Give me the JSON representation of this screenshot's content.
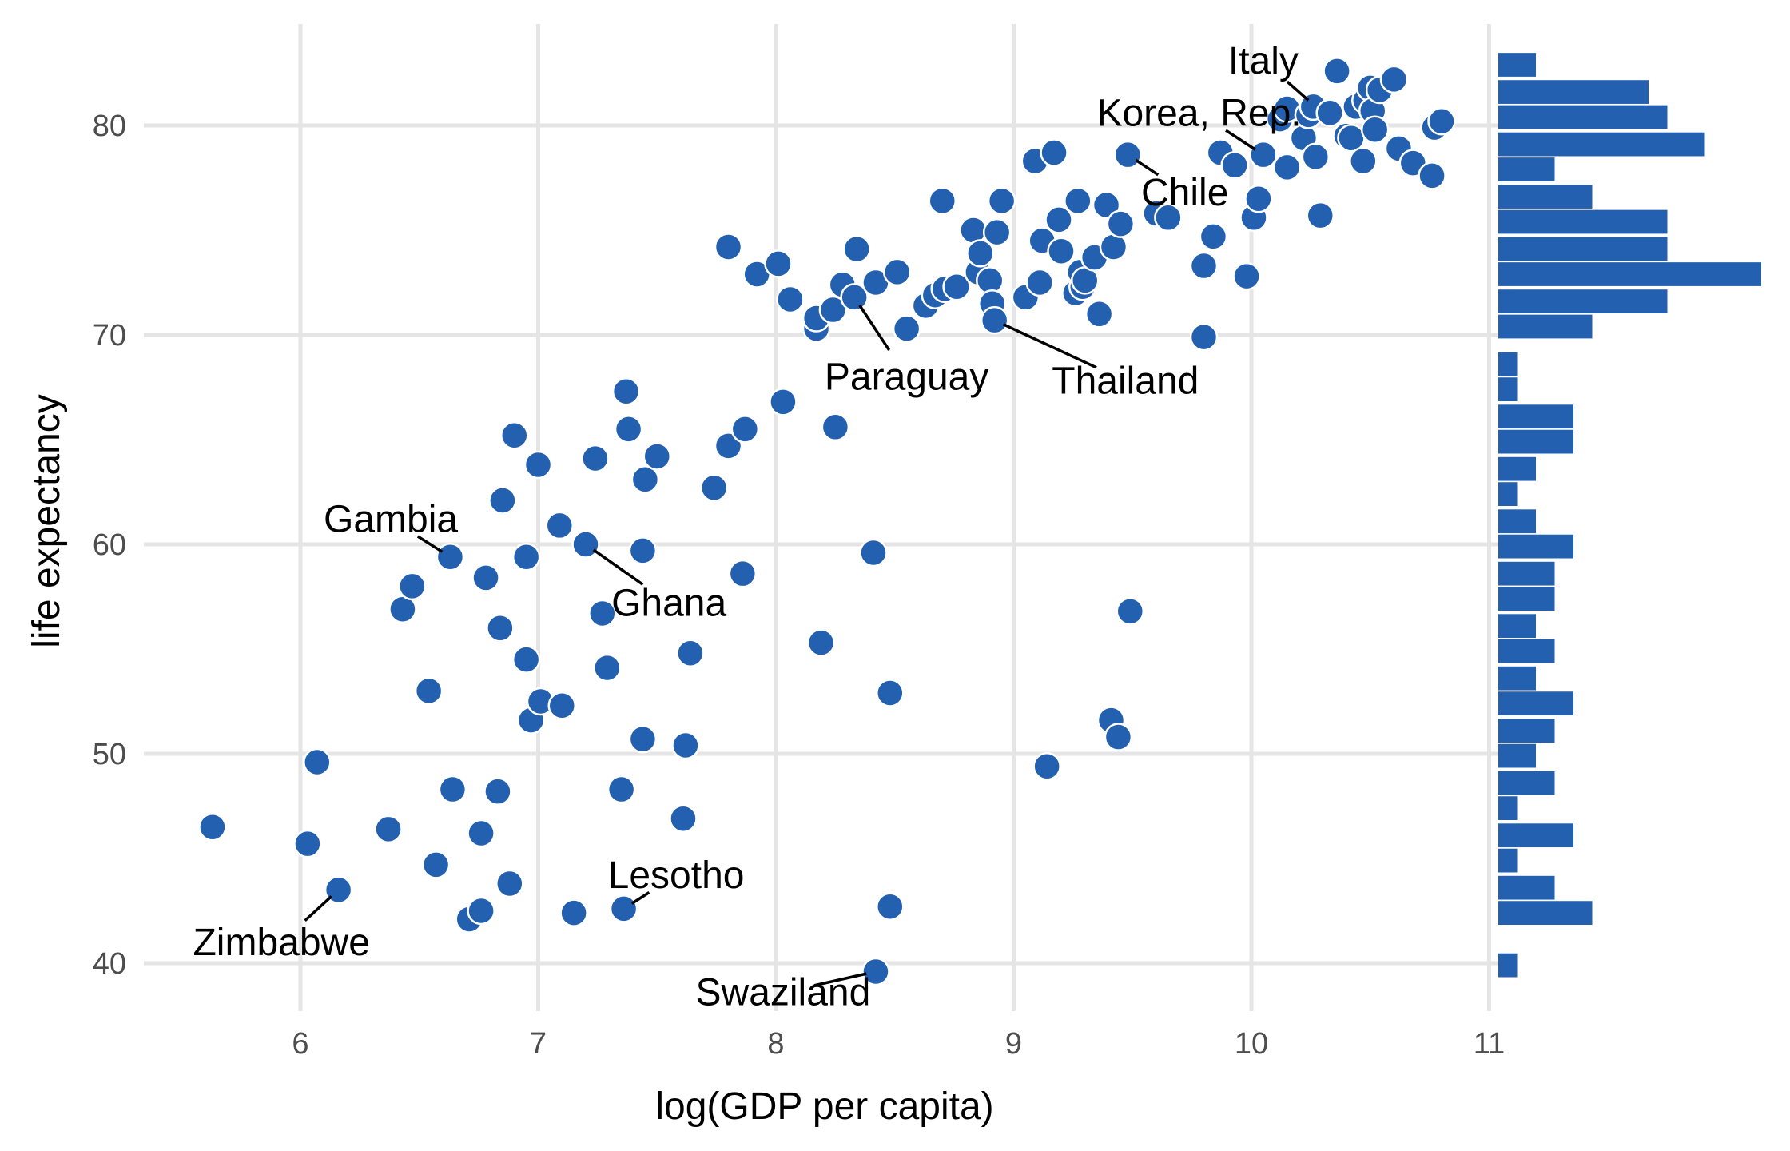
{
  "chart_data": {
    "type": "scatter",
    "title": "",
    "xlabel": "log(GDP per capita)",
    "ylabel": "life expectancy",
    "xlim": [
      5.4,
      11.05
    ],
    "ylim": [
      37.5,
      84.5
    ],
    "x_ticks": [
      6,
      7,
      8,
      9,
      10,
      11
    ],
    "y_ticks": [
      40,
      50,
      60,
      70,
      80
    ],
    "grid": true,
    "point_color": "#2460B0",
    "point_stroke": "#ffffff",
    "marginal_histogram": {
      "side": "right",
      "orientation": "horizontal",
      "bin_width": 1.25,
      "bins": [
        {
          "y": 39.9,
          "count": 1
        },
        {
          "y": 42.4,
          "count": 5
        },
        {
          "y": 43.6,
          "count": 3
        },
        {
          "y": 44.9,
          "count": 1
        },
        {
          "y": 46.1,
          "count": 4
        },
        {
          "y": 47.4,
          "count": 1
        },
        {
          "y": 48.6,
          "count": 3
        },
        {
          "y": 49.9,
          "count": 2
        },
        {
          "y": 51.1,
          "count": 3
        },
        {
          "y": 52.4,
          "count": 4
        },
        {
          "y": 53.6,
          "count": 2
        },
        {
          "y": 54.9,
          "count": 3
        },
        {
          "y": 56.1,
          "count": 2
        },
        {
          "y": 57.4,
          "count": 3
        },
        {
          "y": 58.6,
          "count": 3
        },
        {
          "y": 59.9,
          "count": 4
        },
        {
          "y": 61.1,
          "count": 2
        },
        {
          "y": 62.4,
          "count": 1
        },
        {
          "y": 63.6,
          "count": 2
        },
        {
          "y": 64.9,
          "count": 4
        },
        {
          "y": 66.1,
          "count": 4
        },
        {
          "y": 67.4,
          "count": 1
        },
        {
          "y": 68.6,
          "count": 1
        },
        {
          "y": 70.4,
          "count": 5
        },
        {
          "y": 71.6,
          "count": 9
        },
        {
          "y": 72.9,
          "count": 14
        },
        {
          "y": 74.1,
          "count": 9
        },
        {
          "y": 75.4,
          "count": 9
        },
        {
          "y": 76.6,
          "count": 5
        },
        {
          "y": 77.9,
          "count": 3
        },
        {
          "y": 79.1,
          "count": 11
        },
        {
          "y": 80.4,
          "count": 9
        },
        {
          "y": 81.6,
          "count": 8
        },
        {
          "y": 82.9,
          "count": 2
        }
      ]
    },
    "points": [
      {
        "x": 5.63,
        "y": 46.5
      },
      {
        "x": 6.03,
        "y": 45.7
      },
      {
        "x": 6.07,
        "y": 49.6
      },
      {
        "x": 6.16,
        "y": 43.5
      },
      {
        "x": 6.37,
        "y": 46.4
      },
      {
        "x": 6.43,
        "y": 56.9
      },
      {
        "x": 6.47,
        "y": 58.0
      },
      {
        "x": 6.54,
        "y": 53.0
      },
      {
        "x": 6.57,
        "y": 44.7
      },
      {
        "x": 6.63,
        "y": 59.4
      },
      {
        "x": 6.64,
        "y": 48.3
      },
      {
        "x": 6.71,
        "y": 42.1
      },
      {
        "x": 6.76,
        "y": 42.5
      },
      {
        "x": 6.76,
        "y": 46.2
      },
      {
        "x": 6.78,
        "y": 58.4
      },
      {
        "x": 6.83,
        "y": 48.2
      },
      {
        "x": 6.84,
        "y": 56.0
      },
      {
        "x": 6.85,
        "y": 62.1
      },
      {
        "x": 6.88,
        "y": 43.8
      },
      {
        "x": 6.9,
        "y": 65.2
      },
      {
        "x": 6.95,
        "y": 54.5
      },
      {
        "x": 6.95,
        "y": 59.4
      },
      {
        "x": 6.97,
        "y": 51.6
      },
      {
        "x": 7.0,
        "y": 63.8
      },
      {
        "x": 7.01,
        "y": 52.5
      },
      {
        "x": 7.09,
        "y": 60.9
      },
      {
        "x": 7.1,
        "y": 52.3
      },
      {
        "x": 7.15,
        "y": 42.4
      },
      {
        "x": 7.2,
        "y": 60.0
      },
      {
        "x": 7.24,
        "y": 64.1
      },
      {
        "x": 7.27,
        "y": 56.7
      },
      {
        "x": 7.29,
        "y": 54.1
      },
      {
        "x": 7.35,
        "y": 48.3
      },
      {
        "x": 7.36,
        "y": 42.6
      },
      {
        "x": 7.37,
        "y": 67.3
      },
      {
        "x": 7.38,
        "y": 65.5
      },
      {
        "x": 7.44,
        "y": 50.7
      },
      {
        "x": 7.44,
        "y": 59.7
      },
      {
        "x": 7.45,
        "y": 63.1
      },
      {
        "x": 7.5,
        "y": 64.2
      },
      {
        "x": 7.61,
        "y": 46.9
      },
      {
        "x": 7.62,
        "y": 50.4
      },
      {
        "x": 7.64,
        "y": 54.8
      },
      {
        "x": 7.74,
        "y": 62.7
      },
      {
        "x": 7.8,
        "y": 64.7
      },
      {
        "x": 7.8,
        "y": 74.2
      },
      {
        "x": 7.86,
        "y": 58.6
      },
      {
        "x": 7.87,
        "y": 65.5
      },
      {
        "x": 7.92,
        "y": 72.9
      },
      {
        "x": 8.01,
        "y": 73.4
      },
      {
        "x": 8.03,
        "y": 66.8
      },
      {
        "x": 8.06,
        "y": 71.7
      },
      {
        "x": 8.17,
        "y": 70.3
      },
      {
        "x": 8.17,
        "y": 70.8
      },
      {
        "x": 8.19,
        "y": 55.3
      },
      {
        "x": 8.24,
        "y": 71.2
      },
      {
        "x": 8.25,
        "y": 65.6
      },
      {
        "x": 8.28,
        "y": 72.4
      },
      {
        "x": 8.33,
        "y": 71.8
      },
      {
        "x": 8.34,
        "y": 74.1
      },
      {
        "x": 8.41,
        "y": 59.6
      },
      {
        "x": 8.42,
        "y": 39.6
      },
      {
        "x": 8.42,
        "y": 72.5
      },
      {
        "x": 8.48,
        "y": 42.7
      },
      {
        "x": 8.48,
        "y": 52.9
      },
      {
        "x": 8.51,
        "y": 73.0
      },
      {
        "x": 8.55,
        "y": 70.3
      },
      {
        "x": 8.63,
        "y": 71.4
      },
      {
        "x": 8.67,
        "y": 71.9
      },
      {
        "x": 8.7,
        "y": 76.4
      },
      {
        "x": 8.71,
        "y": 72.2
      },
      {
        "x": 8.76,
        "y": 72.3
      },
      {
        "x": 8.83,
        "y": 75.0
      },
      {
        "x": 8.85,
        "y": 73.0
      },
      {
        "x": 8.86,
        "y": 73.9
      },
      {
        "x": 8.9,
        "y": 72.6
      },
      {
        "x": 8.91,
        "y": 71.5
      },
      {
        "x": 8.92,
        "y": 70.7
      },
      {
        "x": 8.93,
        "y": 74.9
      },
      {
        "x": 8.95,
        "y": 76.4
      },
      {
        "x": 9.05,
        "y": 71.8
      },
      {
        "x": 9.09,
        "y": 78.3
      },
      {
        "x": 9.11,
        "y": 72.5
      },
      {
        "x": 9.12,
        "y": 74.5
      },
      {
        "x": 9.14,
        "y": 49.4
      },
      {
        "x": 9.17,
        "y": 78.7
      },
      {
        "x": 9.19,
        "y": 75.5
      },
      {
        "x": 9.2,
        "y": 74.0
      },
      {
        "x": 9.26,
        "y": 72.0
      },
      {
        "x": 9.27,
        "y": 76.4
      },
      {
        "x": 9.28,
        "y": 73.0
      },
      {
        "x": 9.29,
        "y": 72.3
      },
      {
        "x": 9.3,
        "y": 72.6
      },
      {
        "x": 9.34,
        "y": 73.7
      },
      {
        "x": 9.36,
        "y": 71.0
      },
      {
        "x": 9.39,
        "y": 76.2
      },
      {
        "x": 9.41,
        "y": 51.6
      },
      {
        "x": 9.42,
        "y": 74.2
      },
      {
        "x": 9.44,
        "y": 50.8
      },
      {
        "x": 9.45,
        "y": 75.3
      },
      {
        "x": 9.48,
        "y": 78.6
      },
      {
        "x": 9.49,
        "y": 56.8
      },
      {
        "x": 9.6,
        "y": 75.8
      },
      {
        "x": 9.65,
        "y": 75.6
      },
      {
        "x": 9.8,
        "y": 73.3
      },
      {
        "x": 9.8,
        "y": 69.9
      },
      {
        "x": 9.84,
        "y": 74.7
      },
      {
        "x": 9.87,
        "y": 78.7
      },
      {
        "x": 9.93,
        "y": 78.1
      },
      {
        "x": 9.98,
        "y": 72.8
      },
      {
        "x": 10.01,
        "y": 75.6
      },
      {
        "x": 10.03,
        "y": 76.5
      },
      {
        "x": 10.05,
        "y": 78.6
      },
      {
        "x": 10.12,
        "y": 80.3
      },
      {
        "x": 10.15,
        "y": 78.0
      },
      {
        "x": 10.15,
        "y": 80.8
      },
      {
        "x": 10.22,
        "y": 79.4
      },
      {
        "x": 10.24,
        "y": 80.5
      },
      {
        "x": 10.26,
        "y": 80.9
      },
      {
        "x": 10.27,
        "y": 78.5
      },
      {
        "x": 10.29,
        "y": 75.7
      },
      {
        "x": 10.33,
        "y": 80.6
      },
      {
        "x": 10.36,
        "y": 82.6
      },
      {
        "x": 10.4,
        "y": 79.5
      },
      {
        "x": 10.42,
        "y": 79.4
      },
      {
        "x": 10.44,
        "y": 80.9
      },
      {
        "x": 10.47,
        "y": 78.3
      },
      {
        "x": 10.48,
        "y": 81.2
      },
      {
        "x": 10.5,
        "y": 81.8
      },
      {
        "x": 10.51,
        "y": 80.7
      },
      {
        "x": 10.52,
        "y": 79.8
      },
      {
        "x": 10.54,
        "y": 81.7
      },
      {
        "x": 10.6,
        "y": 82.2
      },
      {
        "x": 10.62,
        "y": 78.9
      },
      {
        "x": 10.68,
        "y": 78.2
      },
      {
        "x": 10.76,
        "y": 77.6
      },
      {
        "x": 10.77,
        "y": 79.9
      },
      {
        "x": 10.8,
        "y": 80.2
      }
    ],
    "annotations": [
      {
        "label": "Italy",
        "x": 10.27,
        "y": 80.9,
        "text_x": 10.05,
        "text_y": 83.1,
        "text_anchor": "middle"
      },
      {
        "label": "Korea, Rep.",
        "x": 10.05,
        "y": 78.6,
        "text_x": 9.78,
        "text_y": 80.6,
        "text_anchor": "middle"
      },
      {
        "label": "Chile",
        "x": 9.48,
        "y": 78.6,
        "text_x": 9.72,
        "text_y": 76.8,
        "text_anchor": "middle"
      },
      {
        "label": "Paraguay",
        "x": 8.33,
        "y": 71.8,
        "text_x": 8.55,
        "text_y": 68.0,
        "text_anchor": "middle"
      },
      {
        "label": "Thailand",
        "x": 8.92,
        "y": 70.7,
        "text_x": 9.47,
        "text_y": 67.8,
        "text_anchor": "middle"
      },
      {
        "label": "Gambia",
        "x": 6.63,
        "y": 59.4,
        "text_x": 6.38,
        "text_y": 61.2,
        "text_anchor": "middle"
      },
      {
        "label": "Ghana",
        "x": 7.2,
        "y": 60.0,
        "text_x": 7.55,
        "text_y": 57.2,
        "text_anchor": "middle"
      },
      {
        "label": "Lesotho",
        "x": 7.36,
        "y": 42.6,
        "text_x": 7.58,
        "text_y": 44.2,
        "text_anchor": "middle"
      },
      {
        "label": "Zimbabwe",
        "x": 6.16,
        "y": 43.5,
        "text_x": 5.92,
        "text_y": 41.0,
        "text_anchor": "middle"
      },
      {
        "label": "Swaziland",
        "x": 8.42,
        "y": 39.6,
        "text_x": 8.03,
        "text_y": 38.6,
        "text_anchor": "middle"
      }
    ]
  }
}
